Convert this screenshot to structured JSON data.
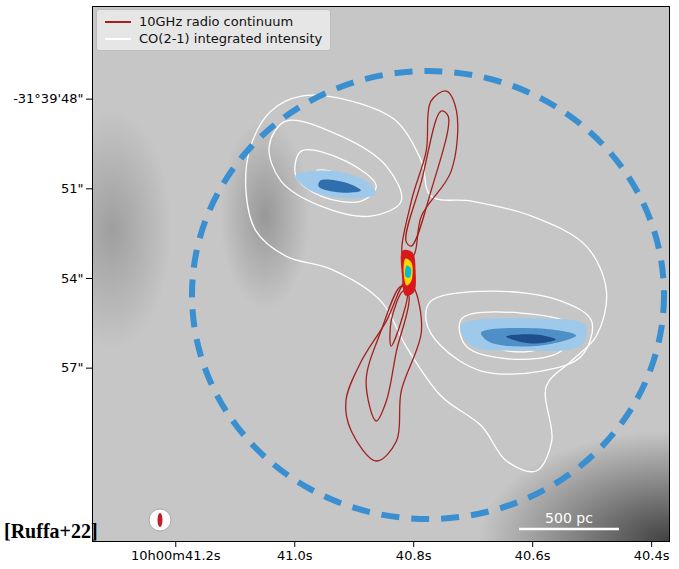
{
  "chart_data": {
    "type": "contour",
    "legend": "upper left",
    "xlim": [
      41.34,
      40.37
    ],
    "xticks": [
      {
        "value": 41.2,
        "label": "10h00m41.2s"
      },
      {
        "value": 41.0,
        "label": "41.0s"
      },
      {
        "value": 40.8,
        "label": "40.8s"
      },
      {
        "value": 40.6,
        "label": "40.6s"
      },
      {
        "value": 40.4,
        "label": "40.4s"
      }
    ],
    "ylim": [
      44.9,
      62.8
    ],
    "yticks": [
      {
        "value": 48,
        "label": "-31°39'48\""
      },
      {
        "value": 51,
        "label": "51\""
      },
      {
        "value": 54,
        "label": "54\""
      },
      {
        "value": 57,
        "label": "57\""
      }
    ],
    "annotations": [
      "500 pc",
      "[Ruffa+22]"
    ],
    "series": [
      {
        "name": "10GHz radio continuum",
        "color": "#a3201d",
        "contours": [
          [
            [
              40.818,
              53.251
            ],
            [
              40.804,
              51.411
            ],
            [
              40.779,
              49.739
            ],
            [
              40.771,
              48.067
            ],
            [
              40.745,
              47.732
            ],
            [
              40.728,
              48.401
            ],
            [
              40.737,
              50.408
            ],
            [
              40.787,
              51.913
            ],
            [
              40.801,
              53.251
            ]
          ],
          [
            [
              40.813,
              52.749
            ],
            [
              40.787,
              50.742
            ],
            [
              40.754,
              48.401
            ],
            [
              40.742,
              48.569
            ],
            [
              40.771,
              51.077
            ],
            [
              40.804,
              52.916
            ]
          ],
          [
            [
              40.813,
              54.087
            ],
            [
              40.846,
              55.425
            ],
            [
              40.888,
              56.763
            ],
            [
              40.914,
              58.1
            ],
            [
              40.905,
              59.104
            ],
            [
              40.863,
              60.107
            ],
            [
              40.829,
              59.438
            ],
            [
              40.821,
              57.766
            ],
            [
              40.787,
              55.759
            ],
            [
              40.801,
              54.254
            ]
          ],
          [
            [
              40.821,
              54.254
            ],
            [
              40.855,
              55.759
            ],
            [
              40.88,
              57.431
            ],
            [
              40.863,
              58.769
            ],
            [
              40.846,
              58.1
            ],
            [
              40.829,
              56.428
            ],
            [
              40.808,
              54.589
            ]
          ],
          [
            [
              40.818,
              54.421
            ],
            [
              40.838,
              55.425
            ],
            [
              40.838,
              56.261
            ],
            [
              40.821,
              55.425
            ],
            [
              40.811,
              54.488
            ]
          ]
        ]
      },
      {
        "name": "CO(2-1) integrated intensity",
        "color": "#ffffff",
        "contours": [
          [
            [
              40.989,
              47.9
            ],
            [
              40.905,
              48.067
            ],
            [
              40.829,
              48.736
            ],
            [
              40.787,
              50.074
            ],
            [
              40.771,
              51.244
            ],
            [
              40.703,
              51.411
            ],
            [
              40.602,
              51.913
            ],
            [
              40.51,
              52.916
            ],
            [
              40.476,
              54.421
            ],
            [
              40.493,
              55.926
            ],
            [
              40.535,
              56.763
            ],
            [
              40.577,
              57.598
            ],
            [
              40.568,
              59.438
            ],
            [
              40.594,
              60.441
            ],
            [
              40.644,
              60.107
            ],
            [
              40.686,
              58.936
            ],
            [
              40.754,
              57.933
            ],
            [
              40.813,
              56.261
            ],
            [
              40.855,
              54.756
            ],
            [
              40.939,
              53.686
            ],
            [
              41.015,
              53.251
            ],
            [
              41.065,
              52.415
            ],
            [
              41.082,
              51.077
            ],
            [
              41.074,
              49.572
            ],
            [
              41.04,
              48.401
            ]
          ],
          [
            [
              41.015,
              48.736
            ],
            [
              40.922,
              49.237
            ],
            [
              40.846,
              50.241
            ],
            [
              40.821,
              51.411
            ],
            [
              40.872,
              51.913
            ],
            [
              40.956,
              51.579
            ],
            [
              41.023,
              50.742
            ],
            [
              41.043,
              49.572
            ]
          ],
          [
            [
              40.989,
              49.739
            ],
            [
              40.914,
              50.074
            ],
            [
              40.863,
              50.91
            ],
            [
              40.888,
              51.411
            ],
            [
              40.956,
              51.244
            ],
            [
              40.998,
              50.575
            ]
          ],
          [
            [
              40.964,
              50.408
            ],
            [
              40.914,
              50.575
            ],
            [
              40.888,
              51.01
            ],
            [
              40.922,
              51.177
            ],
            [
              40.959,
              50.91
            ]
          ],
          [
            [
              40.771,
              54.756
            ],
            [
              40.67,
              54.421
            ],
            [
              40.552,
              54.756
            ],
            [
              40.501,
              55.425
            ],
            [
              40.518,
              56.595
            ],
            [
              40.585,
              57.097
            ],
            [
              40.686,
              57.097
            ],
            [
              40.754,
              56.261
            ],
            [
              40.779,
              55.425
            ]
          ],
          [
            [
              40.72,
              55.358
            ],
            [
              40.619,
              55.157
            ],
            [
              40.535,
              55.592
            ],
            [
              40.552,
              56.428
            ],
            [
              40.636,
              56.696
            ],
            [
              40.712,
              56.261
            ]
          ],
          [
            [
              40.67,
              55.759
            ],
            [
              40.602,
              55.692
            ],
            [
              40.56,
              56.027
            ],
            [
              40.602,
              56.428
            ],
            [
              40.661,
              56.294
            ]
          ]
        ]
      }
    ],
    "filled_regions": [
      {
        "color": "#9ec9ea",
        "points": [
          [
            40.998,
            50.575
          ],
          [
            40.939,
            50.408
          ],
          [
            40.88,
            50.742
          ],
          [
            40.863,
            51.177
          ],
          [
            40.905,
            51.344
          ],
          [
            40.973,
            51.077
          ]
        ]
      },
      {
        "color": "#2f6fae",
        "points": [
          [
            40.956,
            50.742
          ],
          [
            40.914,
            50.809
          ],
          [
            40.888,
            51.077
          ],
          [
            40.922,
            51.144
          ],
          [
            40.959,
            50.943
          ]
        ]
      },
      {
        "color": "#9ec9ea",
        "points": [
          [
            40.72,
            55.592
          ],
          [
            40.602,
            55.358
          ],
          [
            40.51,
            55.592
          ],
          [
            40.518,
            56.261
          ],
          [
            40.619,
            56.428
          ],
          [
            40.703,
            56.261
          ]
        ]
      },
      {
        "color": "#4f8fc8",
        "points": [
          [
            40.686,
            55.826
          ],
          [
            40.585,
            55.692
          ],
          [
            40.526,
            55.926
          ],
          [
            40.585,
            56.261
          ],
          [
            40.67,
            56.161
          ]
        ]
      },
      {
        "color": "#1f4e8c",
        "points": [
          [
            40.644,
            55.96
          ],
          [
            40.594,
            55.893
          ],
          [
            40.56,
            56.06
          ],
          [
            40.602,
            56.194
          ]
        ]
      },
      {
        "color": "#d7191c",
        "points": [
          [
            40.818,
            53.084
          ],
          [
            40.801,
            53.151
          ],
          [
            40.796,
            53.752
          ],
          [
            40.799,
            54.488
          ],
          [
            40.813,
            54.589
          ],
          [
            40.819,
            53.92
          ]
        ]
      },
      {
        "color": "#ffd700",
        "points": [
          [
            40.813,
            53.351
          ],
          [
            40.803,
            53.485
          ],
          [
            40.803,
            54.087
          ],
          [
            40.811,
            54.254
          ],
          [
            40.816,
            53.819
          ]
        ]
      },
      {
        "color": "#00bcd4",
        "points": [
          [
            40.811,
            53.585
          ],
          [
            40.804,
            53.686
          ],
          [
            40.806,
            53.987
          ],
          [
            40.813,
            53.953
          ]
        ]
      }
    ]
  }
}
